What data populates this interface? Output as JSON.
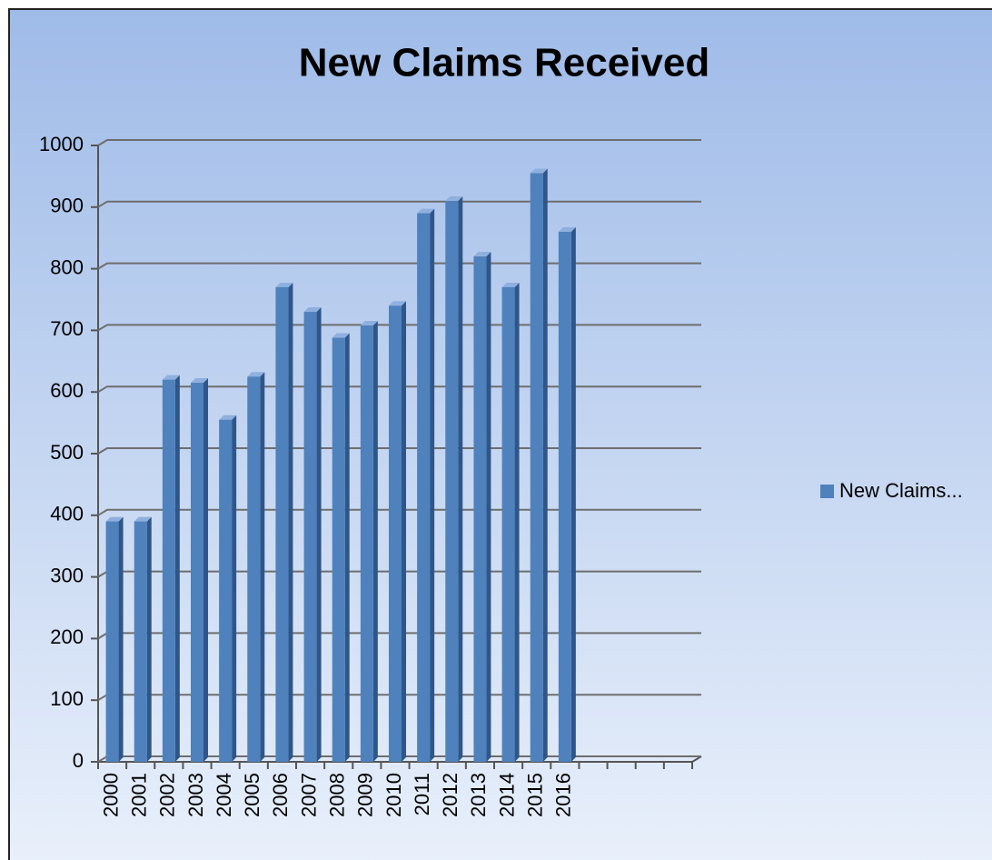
{
  "chart_data": {
    "type": "bar",
    "title": "New Claims Received",
    "categories": [
      "2000",
      "2001",
      "2002",
      "2003",
      "2004",
      "2005",
      "2006",
      "2007",
      "2008",
      "2009",
      "2010",
      "2011",
      "2012",
      "2013",
      "2014",
      "2015",
      "2016",
      null,
      null,
      null,
      null
    ],
    "series": [
      {
        "name": "New Claims...",
        "color": "#4f81bd",
        "values": [
          390,
          390,
          620,
          615,
          555,
          625,
          770,
          730,
          688,
          708,
          740,
          890,
          910,
          820,
          770,
          955,
          860,
          null,
          null,
          null,
          null
        ]
      }
    ],
    "ylim": [
      0,
      1000
    ],
    "yticks": [
      0,
      100,
      200,
      300,
      400,
      500,
      600,
      700,
      800,
      900,
      1000
    ],
    "grid": true,
    "legend": "right"
  }
}
